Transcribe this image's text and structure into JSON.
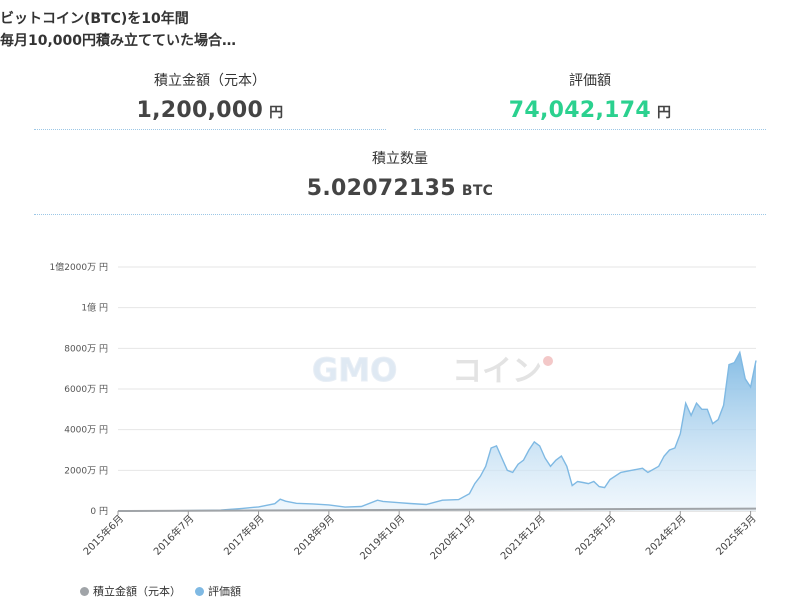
{
  "header": {
    "title_line1": "ビットコイン(BTC)を10年間",
    "title_line2": "毎月10,000円積み立てていた場合…"
  },
  "stats": {
    "principal": {
      "label": "積立金額（元本）",
      "value": "1,200,000",
      "unit": "円"
    },
    "valuation": {
      "label": "評価額",
      "value": "74,042,174",
      "unit": "円"
    },
    "quantity": {
      "label": "積立数量",
      "value": "5.02072135",
      "unit": "BTC"
    }
  },
  "colors": {
    "principal": "#a0a4a8",
    "valuation": "#7fb9e3",
    "valuation_fill_top": "#7fb9e3",
    "valuation_fill_bottom": "#e6f2fb",
    "accent_green": "#2bd18f",
    "grid": "#e6e6e6"
  },
  "watermark": {
    "text_a": "GMO",
    "text_b": "コイン"
  },
  "chart_data": {
    "type": "area",
    "title": "",
    "xlabel": "",
    "ylabel": "",
    "ylim": [
      0,
      120000000
    ],
    "y_ticks": [
      {
        "value": 0,
        "label": "0 円"
      },
      {
        "value": 20000000,
        "label": "2000万 円"
      },
      {
        "value": 40000000,
        "label": "4000万 円"
      },
      {
        "value": 60000000,
        "label": "6000万 円"
      },
      {
        "value": 80000000,
        "label": "8000万 円"
      },
      {
        "value": 100000000,
        "label": "1億 円"
      },
      {
        "value": 120000000,
        "label": "1億2000万 円"
      }
    ],
    "x_range": [
      "2015-06",
      "2025-04"
    ],
    "x_ticks": [
      {
        "x": "2015-06",
        "label": "2015年6月"
      },
      {
        "x": "2016-07",
        "label": "2016年7月"
      },
      {
        "x": "2017-08",
        "label": "2017年8月"
      },
      {
        "x": "2018-09",
        "label": "2018年9月"
      },
      {
        "x": "2019-10",
        "label": "2019年10月"
      },
      {
        "x": "2020-11",
        "label": "2020年11月"
      },
      {
        "x": "2021-12",
        "label": "2021年12月"
      },
      {
        "x": "2023-01",
        "label": "2023年1月"
      },
      {
        "x": "2024-02",
        "label": "2024年2月"
      },
      {
        "x": "2025-03",
        "label": "2025年3月"
      }
    ],
    "grid": true,
    "legend": "bottom-left",
    "series": [
      {
        "name": "積立金額（元本）",
        "points": [
          [
            "2015-06",
            10000
          ],
          [
            "2025-04",
            1200000
          ]
        ]
      },
      {
        "name": "評価額",
        "points": [
          [
            "2015-06",
            10000
          ],
          [
            "2016-01",
            90000
          ],
          [
            "2016-07",
            200000
          ],
          [
            "2017-01",
            450000
          ],
          [
            "2017-05",
            1300000
          ],
          [
            "2017-08",
            2000000
          ],
          [
            "2017-11",
            3600000
          ],
          [
            "2017-12",
            5800000
          ],
          [
            "2018-01",
            4800000
          ],
          [
            "2018-03",
            3800000
          ],
          [
            "2018-06",
            3500000
          ],
          [
            "2018-09",
            3000000
          ],
          [
            "2018-12",
            1900000
          ],
          [
            "2019-03",
            2200000
          ],
          [
            "2019-06",
            5300000
          ],
          [
            "2019-07",
            4700000
          ],
          [
            "2019-10",
            4100000
          ],
          [
            "2019-12",
            3700000
          ],
          [
            "2020-03",
            3200000
          ],
          [
            "2020-06",
            5300000
          ],
          [
            "2020-09",
            5600000
          ],
          [
            "2020-11",
            8500000
          ],
          [
            "2020-12",
            13500000
          ],
          [
            "2021-01",
            17000000
          ],
          [
            "2021-02",
            22000000
          ],
          [
            "2021-03",
            31000000
          ],
          [
            "2021-04",
            32000000
          ],
          [
            "2021-05",
            26000000
          ],
          [
            "2021-06",
            20000000
          ],
          [
            "2021-07",
            19000000
          ],
          [
            "2021-08",
            23000000
          ],
          [
            "2021-09",
            25000000
          ],
          [
            "2021-10",
            30000000
          ],
          [
            "2021-11",
            34000000
          ],
          [
            "2021-12",
            32000000
          ],
          [
            "2022-01",
            26000000
          ],
          [
            "2022-02",
            22000000
          ],
          [
            "2022-03",
            25000000
          ],
          [
            "2022-04",
            27000000
          ],
          [
            "2022-05",
            22000000
          ],
          [
            "2022-06",
            12500000
          ],
          [
            "2022-07",
            14500000
          ],
          [
            "2022-08",
            14000000
          ],
          [
            "2022-09",
            13500000
          ],
          [
            "2022-10",
            14500000
          ],
          [
            "2022-11",
            12000000
          ],
          [
            "2022-12",
            11500000
          ],
          [
            "2023-01",
            15500000
          ],
          [
            "2023-03",
            19000000
          ],
          [
            "2023-05",
            20000000
          ],
          [
            "2023-07",
            21000000
          ],
          [
            "2023-08",
            19000000
          ],
          [
            "2023-10",
            22000000
          ],
          [
            "2023-11",
            27000000
          ],
          [
            "2023-12",
            30000000
          ],
          [
            "2024-01",
            31000000
          ],
          [
            "2024-02",
            38000000
          ],
          [
            "2024-03",
            53000000
          ],
          [
            "2024-04",
            47000000
          ],
          [
            "2024-05",
            53000000
          ],
          [
            "2024-06",
            50000000
          ],
          [
            "2024-07",
            50000000
          ],
          [
            "2024-08",
            43000000
          ],
          [
            "2024-09",
            45000000
          ],
          [
            "2024-10",
            52000000
          ],
          [
            "2024-11",
            72000000
          ],
          [
            "2024-12",
            73000000
          ],
          [
            "2025-01",
            78000000
          ],
          [
            "2025-02",
            65000000
          ],
          [
            "2025-03",
            61000000
          ],
          [
            "2025-04",
            74000000
          ]
        ]
      }
    ]
  }
}
